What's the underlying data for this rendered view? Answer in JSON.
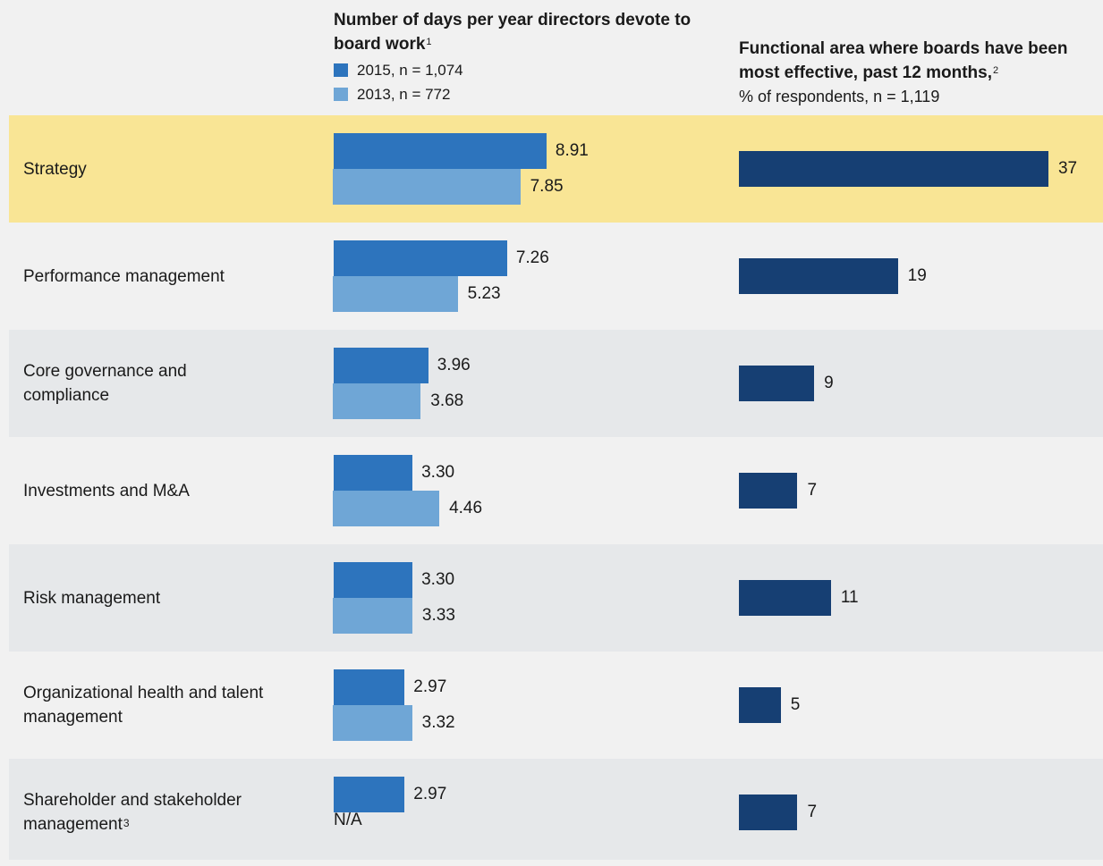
{
  "header_left": {
    "title": "Number of days per year directors devote to board work",
    "footnote": "1",
    "legend": [
      {
        "label": "2015, n = 1,074",
        "color": "#2d74bd"
      },
      {
        "label": "2013, n = 772",
        "color": "#6fa6d6"
      }
    ]
  },
  "header_right": {
    "title": "Functional area where boards have been most effective, past 12 months,",
    "footnote": "2",
    "subtitle": "% of respondents, n = 1,119"
  },
  "chart_data": [
    {
      "type": "bar",
      "orientation": "horizontal",
      "title": "Number of days per year directors devote to board work",
      "categories": [
        "Strategy",
        "Performance management",
        "Core governance and compliance",
        "Investments and M&A",
        "Risk management",
        "Organizational health and talent management",
        "Shareholder and stakeholder management"
      ],
      "series": [
        {
          "name": "2015, n = 1,074",
          "color": "#2d74bd",
          "values": [
            8.91,
            7.26,
            3.96,
            3.3,
            3.3,
            2.97,
            2.97
          ],
          "labels": [
            "8.91",
            "7.26",
            "3.96",
            "3.30",
            "3.30",
            "2.97",
            "2.97"
          ]
        },
        {
          "name": "2013, n = 772",
          "color": "#6fa6d6",
          "values": [
            7.85,
            5.23,
            3.68,
            4.46,
            3.33,
            3.32,
            null
          ],
          "labels": [
            "7.85",
            "5.23",
            "3.68",
            "4.46",
            "3.33",
            "3.32",
            "N/A"
          ]
        }
      ]
    },
    {
      "type": "bar",
      "orientation": "horizontal",
      "title": "Functional area where boards have been most effective, past 12 months,",
      "ylabel": "% of respondents, n = 1,119",
      "categories": [
        "Strategy",
        "Performance management",
        "Core governance and compliance",
        "Investments and M&A",
        "Risk management",
        "Organizational health and talent management",
        "Shareholder and stakeholder management"
      ],
      "series": [
        {
          "color": "#163f73",
          "values": [
            37,
            19,
            9,
            7,
            11,
            5,
            7
          ],
          "labels": [
            "37",
            "19",
            "9",
            "7",
            "11",
            "5",
            "7"
          ]
        }
      ]
    }
  ],
  "rows": [
    {
      "label": "Strategy",
      "footnote": "",
      "highlight": true
    },
    {
      "label": "Performance management",
      "footnote": ""
    },
    {
      "label": "Core governance and compliance",
      "footnote": ""
    },
    {
      "label": "Investments and M&A",
      "footnote": ""
    },
    {
      "label": "Risk management",
      "footnote": ""
    },
    {
      "label": "Organizational health and talent management",
      "footnote": ""
    },
    {
      "label": "Shareholder and stakeholder management",
      "footnote": "3"
    }
  ]
}
